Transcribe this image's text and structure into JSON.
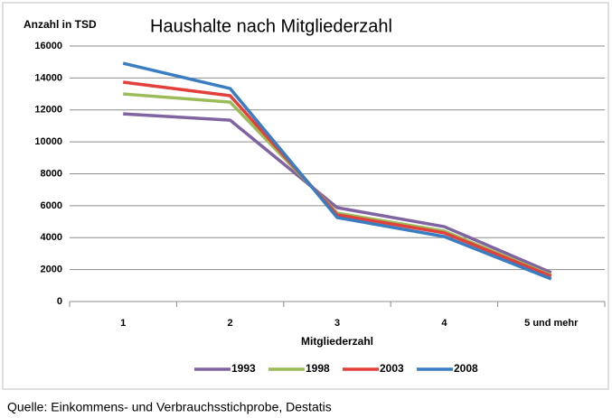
{
  "chart_data": {
    "type": "line",
    "title": "Haushalte nach Mitgliederzahl",
    "y_label": "Anzahl in TSD",
    "x_label": "Mitgliederzahl",
    "source": "Quelle: Einkommens- und Verbrauchsstichprobe, Destatis",
    "categories": [
      "1",
      "2",
      "3",
      "4",
      "5 und mehr"
    ],
    "series": [
      {
        "name": "1993",
        "color": "#8064a2",
        "values": [
          11750,
          11360,
          5880,
          4690,
          1810
        ]
      },
      {
        "name": "1998",
        "color": "#9bbb59",
        "values": [
          13000,
          12490,
          5540,
          4410,
          1640
        ]
      },
      {
        "name": "2003",
        "color": "#e2403a",
        "values": [
          13740,
          12890,
          5430,
          4300,
          1580
        ]
      },
      {
        "name": "2008",
        "color": "#3a7dc2",
        "values": [
          14920,
          13340,
          5260,
          4070,
          1410
        ]
      }
    ],
    "ylim": [
      0,
      16000
    ],
    "yticks": [
      0,
      2000,
      4000,
      6000,
      8000,
      10000,
      12000,
      14000,
      16000
    ],
    "grid": true,
    "legend": "bottom"
  }
}
